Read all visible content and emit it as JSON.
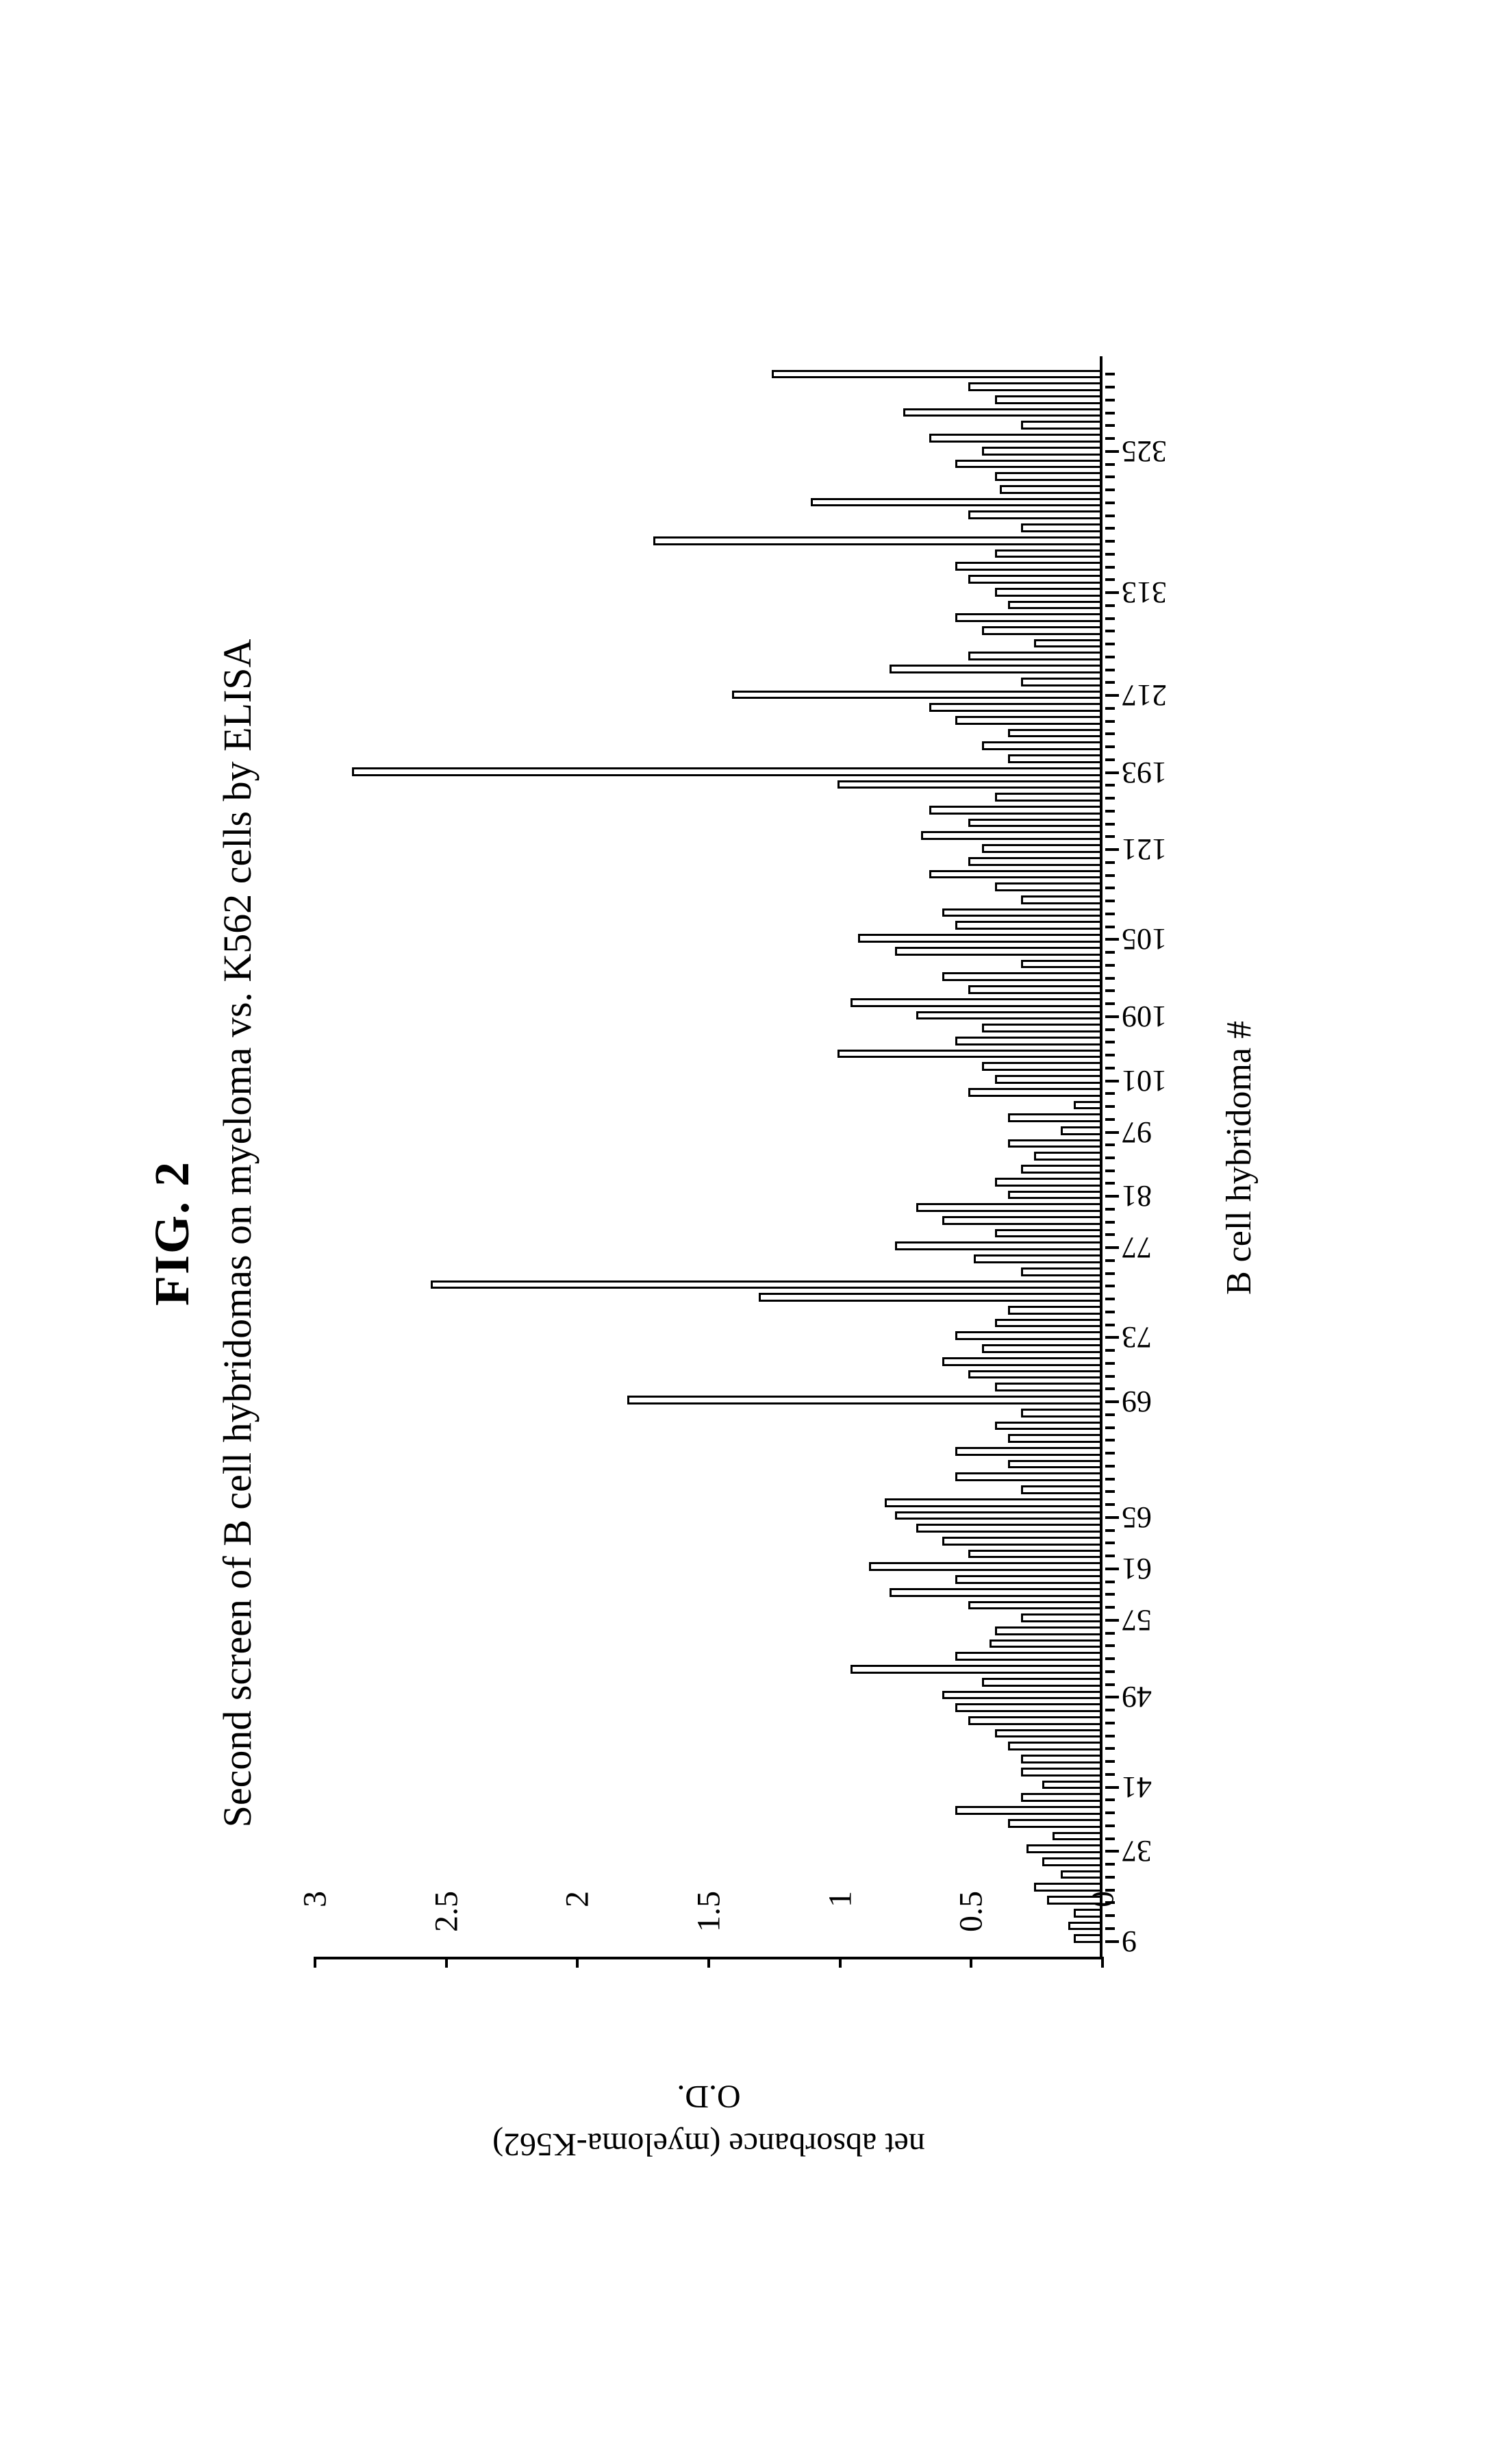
{
  "figure": {
    "label": "FIG. 2",
    "title": "Second screen of B cell hybridomas on myeloma vs. K562 cells by ELISA",
    "type": "bar",
    "x_axis_label": "B cell hybridoma #",
    "y_axis_label_line1": "net absorbance (myeloma-K562)",
    "y_axis_label_line2": "O.D.",
    "ylim": [
      0,
      3
    ],
    "ytick_step": 0.5,
    "yticks": [
      0,
      0.5,
      1,
      1.5,
      2,
      2.5,
      3
    ],
    "x_categories_shown": [
      "9",
      "37",
      "41",
      "49",
      "57",
      "61",
      "65",
      "69",
      "73",
      "77",
      "81",
      "97",
      "101",
      "109",
      "105",
      "121",
      "193",
      "217",
      "313",
      "325"
    ],
    "bar_border_color": "#000000",
    "bar_fill_color": "#ffffff",
    "background_color": "#ffffff",
    "axis_color": "#000000",
    "title_fontsize_pt": 42,
    "fig_label_fontsize_pt": 54,
    "axis_label_fontsize_pt": 36,
    "tick_label_fontsize_pt": 34,
    "bar_values": [
      0.1,
      0.12,
      0.1,
      0.2,
      0.25,
      0.15,
      0.22,
      0.28,
      0.18,
      0.35,
      0.55,
      0.3,
      0.22,
      0.3,
      0.3,
      0.35,
      0.4,
      0.5,
      0.55,
      0.6,
      0.45,
      0.95,
      0.55,
      0.42,
      0.4,
      0.3,
      0.5,
      0.8,
      0.55,
      0.88,
      0.5,
      0.6,
      0.7,
      0.78,
      0.82,
      0.3,
      0.55,
      0.35,
      0.55,
      0.35,
      0.4,
      0.3,
      1.8,
      0.4,
      0.5,
      0.6,
      0.45,
      0.55,
      0.4,
      0.35,
      1.3,
      2.55,
      0.3,
      0.48,
      0.78,
      0.4,
      0.6,
      0.7,
      0.35,
      0.4,
      0.3,
      0.25,
      0.35,
      0.15,
      0.35,
      0.1,
      0.5,
      0.4,
      0.45,
      1.0,
      0.55,
      0.45,
      0.7,
      0.95,
      0.5,
      0.6,
      0.3,
      0.78,
      0.92,
      0.55,
      0.6,
      0.3,
      0.4,
      0.65,
      0.5,
      0.45,
      0.68,
      0.5,
      0.65,
      0.4,
      1.0,
      2.85,
      0.35,
      0.45,
      0.35,
      0.55,
      0.65,
      1.4,
      0.3,
      0.8,
      0.5,
      0.25,
      0.45,
      0.55,
      0.35,
      0.4,
      0.5,
      0.55,
      0.4,
      1.7,
      0.3,
      0.5,
      1.1,
      0.38,
      0.4,
      0.55,
      0.45,
      0.65,
      0.3,
      0.75,
      0.4,
      0.5,
      1.25
    ],
    "x_label_bar_indices": {
      "9": 0,
      "37": 7,
      "41": 12,
      "49": 19,
      "57": 25,
      "61": 29,
      "65": 33,
      "69": 42,
      "73": 47,
      "77": 54,
      "81": 58,
      "97": 63,
      "101": 67,
      "109": 72,
      "105": 78,
      "121": 85,
      "193": 91,
      "217": 97,
      "313": 105,
      "325": 116
    }
  }
}
